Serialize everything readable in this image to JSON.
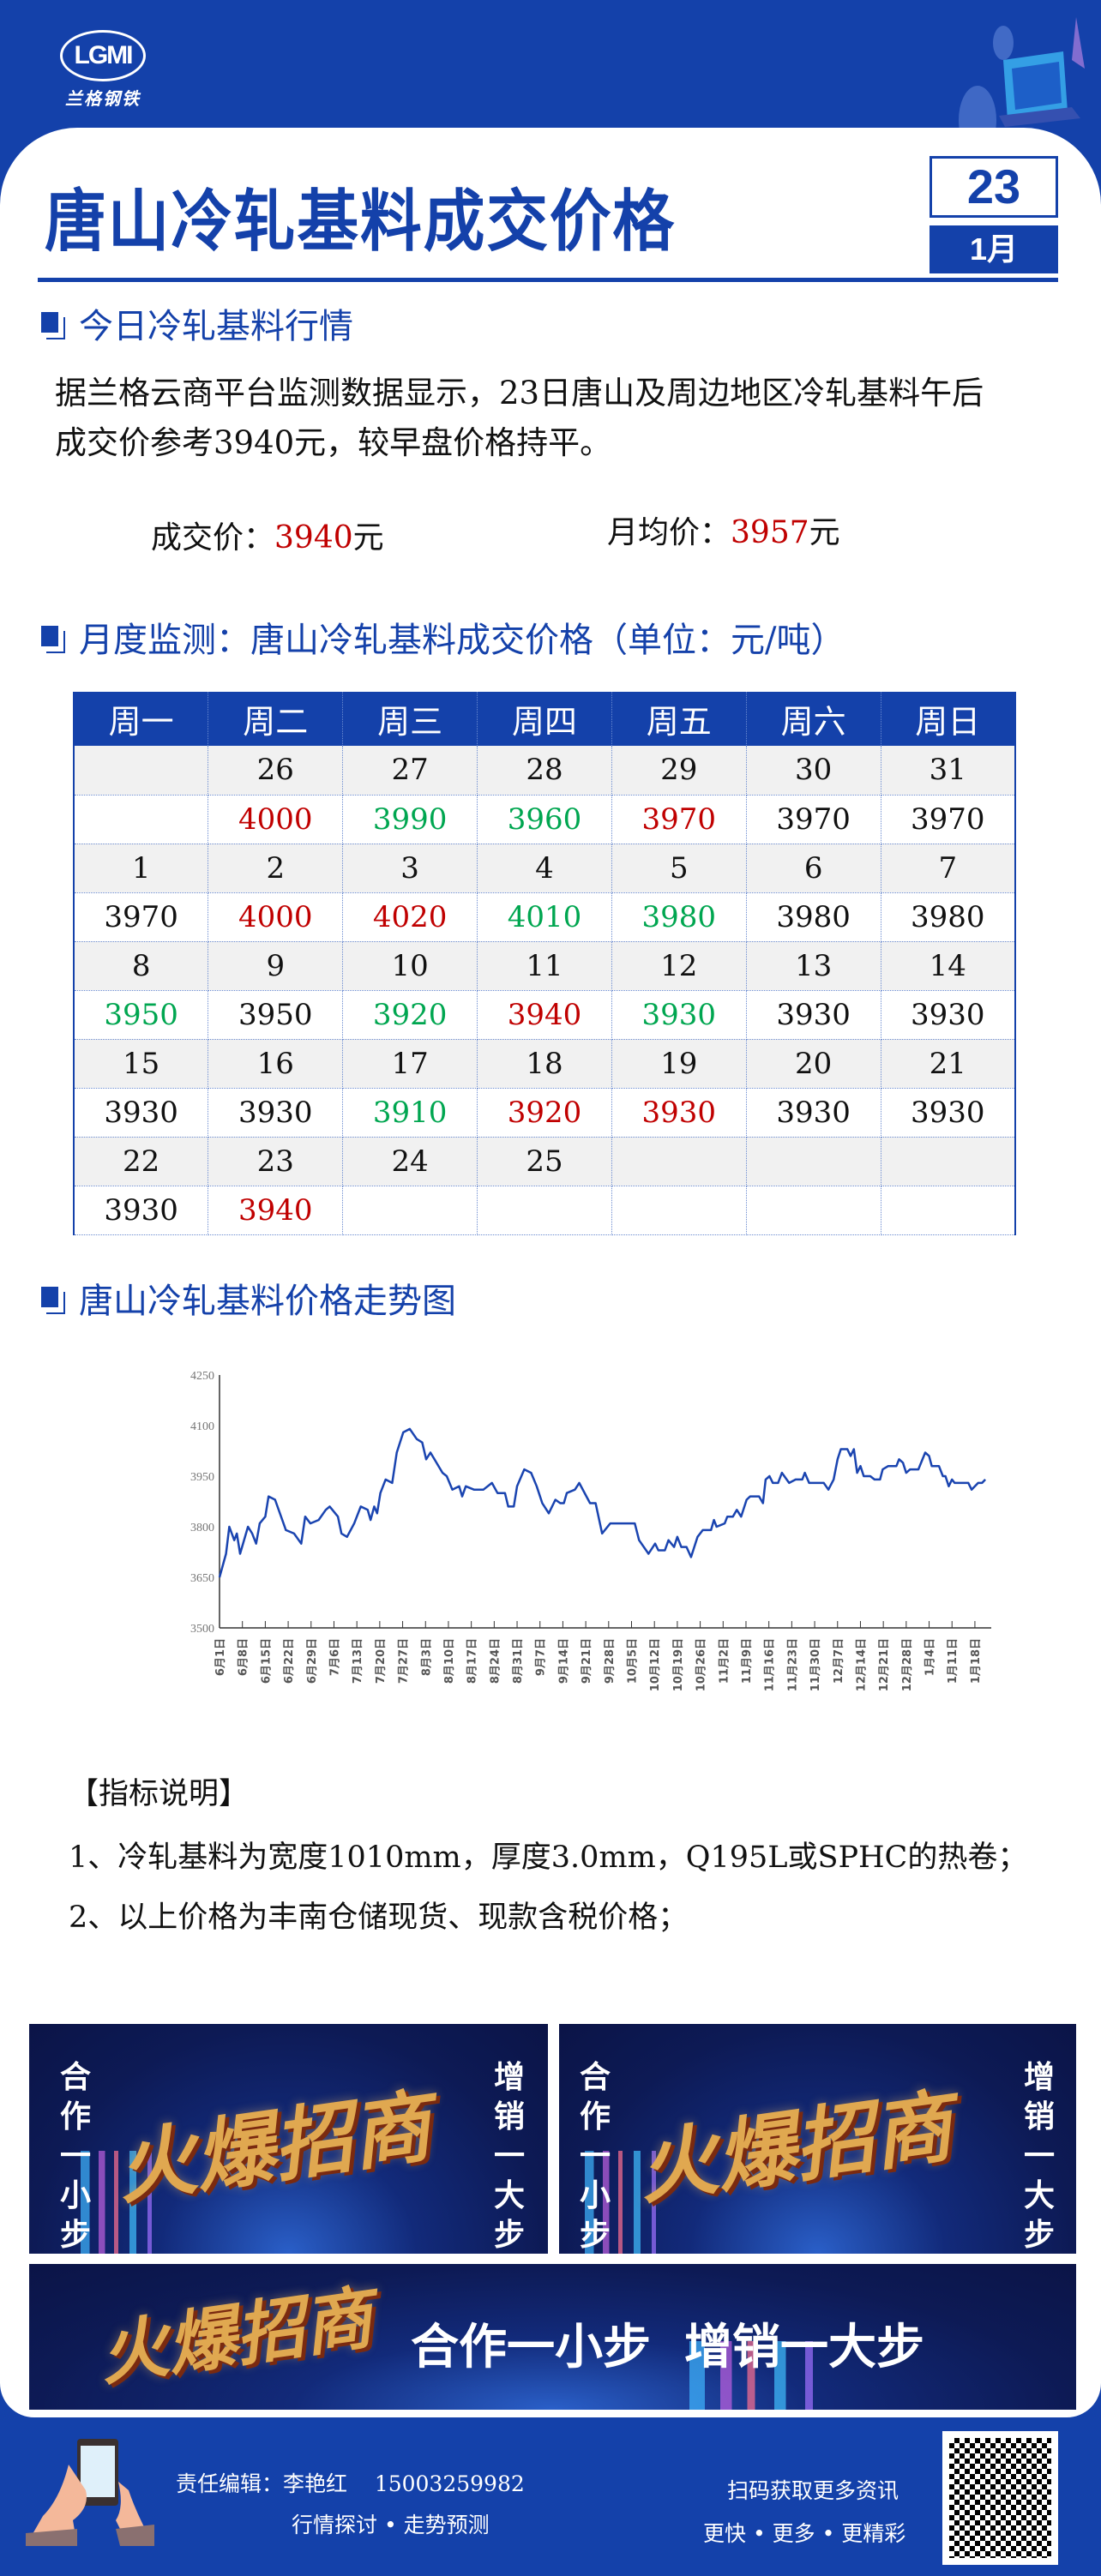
{
  "brand": {
    "logo_letters": "LGMI",
    "logo_name": "兰格钢铁"
  },
  "header": {
    "title": "唐山冷轧基料成交价格",
    "day": "23",
    "month": "1月"
  },
  "today": {
    "heading": "今日冷轧基料行情",
    "paragraph_line1": "据兰格云商平台监测数据显示，23日唐山及周边地区冷轧基料午后",
    "paragraph_line2": "成交价参考3940元，较早盘价格持平。",
    "deal_label": "成交价：",
    "deal_value": "3940",
    "deal_unit": "元",
    "avg_label": "月均价：",
    "avg_value": "3957",
    "avg_unit": "元"
  },
  "monthly": {
    "heading": "月度监测：唐山冷轧基料成交价格（单位：元/吨）",
    "weekdays": [
      "周一",
      "周二",
      "周三",
      "周四",
      "周五",
      "周六",
      "周日"
    ],
    "weeks": [
      {
        "dates": [
          "",
          "26",
          "27",
          "28",
          "29",
          "30",
          "31"
        ],
        "prices": [
          "",
          "4000",
          "3990",
          "3960",
          "3970",
          "3970",
          "3970"
        ],
        "colors": [
          "black",
          "red",
          "green",
          "green",
          "red",
          "black",
          "black"
        ]
      },
      {
        "dates": [
          "1",
          "2",
          "3",
          "4",
          "5",
          "6",
          "7"
        ],
        "prices": [
          "3970",
          "4000",
          "4020",
          "4010",
          "3980",
          "3980",
          "3980"
        ],
        "colors": [
          "black",
          "red",
          "red",
          "green",
          "green",
          "black",
          "black"
        ]
      },
      {
        "dates": [
          "8",
          "9",
          "10",
          "11",
          "12",
          "13",
          "14"
        ],
        "prices": [
          "3950",
          "3950",
          "3920",
          "3940",
          "3930",
          "3930",
          "3930"
        ],
        "colors": [
          "green",
          "black",
          "green",
          "red",
          "green",
          "black",
          "black"
        ]
      },
      {
        "dates": [
          "15",
          "16",
          "17",
          "18",
          "19",
          "20",
          "21"
        ],
        "prices": [
          "3930",
          "3930",
          "3910",
          "3920",
          "3930",
          "3930",
          "3930"
        ],
        "colors": [
          "black",
          "black",
          "green",
          "red",
          "red",
          "black",
          "black"
        ]
      },
      {
        "dates": [
          "22",
          "23",
          "24",
          "25",
          "",
          "",
          ""
        ],
        "prices": [
          "3930",
          "3940",
          "",
          "",
          "",
          "",
          ""
        ],
        "colors": [
          "black",
          "red",
          "black",
          "black",
          "black",
          "black",
          "black"
        ]
      }
    ]
  },
  "trend": {
    "heading": "唐山冷轧基料价格走势图"
  },
  "chart_data": {
    "type": "line",
    "title": "",
    "xlabel": "",
    "ylabel": "单位：元/吨",
    "ylim": [
      3500,
      4250
    ],
    "yticks": [
      3500,
      3650,
      3800,
      3950,
      4100,
      4250
    ],
    "x_unit": "days since 6月1日",
    "xticks": [
      "6月1日",
      "6月8日",
      "6月15日",
      "6月22日",
      "6月29日",
      "7月6日",
      "7月13日",
      "7月20日",
      "7月27日",
      "8月3日",
      "8月10日",
      "8月17日",
      "8月24日",
      "8月31日",
      "9月7日",
      "9月14日",
      "9月21日",
      "9月28日",
      "10月5日",
      "10月12日",
      "10月19日",
      "10月26日",
      "11月2日",
      "11月9日",
      "11月16日",
      "11月23日",
      "11月30日",
      "12月7日",
      "12月14日",
      "12月21日",
      "12月28日",
      "1月4日",
      "1月11日",
      "1月18日"
    ],
    "xlim": [
      0,
      236
    ],
    "grid": false,
    "color": "#1a44b0",
    "series": [
      {
        "name": "唐山冷轧基料",
        "points": [
          [
            0,
            3650
          ],
          [
            2,
            3720
          ],
          [
            3,
            3800
          ],
          [
            4.5,
            3760
          ],
          [
            5.3,
            3780
          ],
          [
            6.3,
            3720
          ],
          [
            8.7,
            3800
          ],
          [
            10,
            3780
          ],
          [
            11.2,
            3750
          ],
          [
            12.3,
            3810
          ],
          [
            14,
            3830
          ],
          [
            15,
            3890
          ],
          [
            17,
            3880
          ],
          [
            20.3,
            3790
          ],
          [
            22.8,
            3780
          ],
          [
            25,
            3750
          ],
          [
            26.2,
            3830
          ],
          [
            27.8,
            3810
          ],
          [
            30.3,
            3820
          ],
          [
            32.5,
            3850
          ],
          [
            33.7,
            3860
          ],
          [
            36.2,
            3830
          ],
          [
            37.3,
            3780
          ],
          [
            39,
            3770
          ],
          [
            41.2,
            3810
          ],
          [
            43.2,
            3860
          ],
          [
            45.3,
            3850
          ],
          [
            46.2,
            3820
          ],
          [
            47.3,
            3860
          ],
          [
            48.2,
            3840
          ],
          [
            49.2,
            3900
          ],
          [
            50.8,
            3940
          ],
          [
            52.8,
            3930
          ],
          [
            54.2,
            4020
          ],
          [
            56.2,
            4080
          ],
          [
            58.2,
            4090
          ],
          [
            60.3,
            4060
          ],
          [
            62,
            4050
          ],
          [
            63.2,
            4000
          ],
          [
            64.5,
            4020
          ],
          [
            68.2,
            3960
          ],
          [
            69.5,
            3950
          ],
          [
            71.2,
            3910
          ],
          [
            73.3,
            3920
          ],
          [
            74.2,
            3890
          ],
          [
            75.3,
            3920
          ],
          [
            77.8,
            3910
          ],
          [
            80.7,
            3910
          ],
          [
            83.3,
            3930
          ],
          [
            85,
            3900
          ],
          [
            87.3,
            3900
          ],
          [
            88.3,
            3860
          ],
          [
            90,
            3860
          ],
          [
            91,
            3920
          ],
          [
            93.2,
            3970
          ],
          [
            95.3,
            3960
          ],
          [
            97,
            3920
          ],
          [
            98.7,
            3870
          ],
          [
            100.7,
            3840
          ],
          [
            102.7,
            3880
          ],
          [
            104.2,
            3870
          ],
          [
            105.3,
            3870
          ],
          [
            106.2,
            3900
          ],
          [
            108.7,
            3910
          ],
          [
            110,
            3930
          ],
          [
            113.3,
            3870
          ],
          [
            115,
            3870
          ],
          [
            117,
            3780
          ],
          [
            119.5,
            3810
          ],
          [
            127,
            3810
          ],
          [
            128.3,
            3760
          ],
          [
            131.2,
            3720
          ],
          [
            133.2,
            3750
          ],
          [
            134.2,
            3730
          ],
          [
            136.2,
            3730
          ],
          [
            137.3,
            3760
          ],
          [
            139,
            3740
          ],
          [
            140,
            3770
          ],
          [
            141.2,
            3740
          ],
          [
            142.8,
            3740
          ],
          [
            144.2,
            3710
          ],
          [
            146.2,
            3770
          ],
          [
            147.8,
            3790
          ],
          [
            150.3,
            3790
          ],
          [
            151.2,
            3820
          ],
          [
            152,
            3800
          ],
          [
            154.5,
            3810
          ],
          [
            155.3,
            3830
          ],
          [
            157,
            3830
          ],
          [
            158.2,
            3850
          ],
          [
            159.5,
            3830
          ],
          [
            161.2,
            3880
          ],
          [
            162.3,
            3890
          ],
          [
            165,
            3890
          ],
          [
            166.2,
            3870
          ],
          [
            167,
            3940
          ],
          [
            168.2,
            3950
          ],
          [
            169.2,
            3930
          ],
          [
            170.8,
            3930
          ],
          [
            172,
            3960
          ],
          [
            174.2,
            3930
          ],
          [
            176.2,
            3940
          ],
          [
            178.2,
            3940
          ],
          [
            179,
            3960
          ],
          [
            180.3,
            3930
          ],
          [
            184.8,
            3930
          ],
          [
            186.2,
            3910
          ],
          [
            187.8,
            3940
          ],
          [
            189,
            4000
          ],
          [
            190,
            4030
          ],
          [
            192,
            4030
          ],
          [
            193,
            4010
          ],
          [
            194,
            4030
          ],
          [
            195,
            3960
          ],
          [
            196,
            3980
          ],
          [
            197,
            3950
          ],
          [
            199,
            3950
          ],
          [
            200.3,
            3940
          ],
          [
            202,
            3940
          ],
          [
            202.8,
            3970
          ],
          [
            204.5,
            3980
          ],
          [
            207,
            3980
          ],
          [
            207.8,
            4000
          ],
          [
            209,
            3990
          ],
          [
            210,
            3960
          ],
          [
            211.2,
            3970
          ],
          [
            213.7,
            3970
          ],
          [
            215.8,
            4020
          ],
          [
            217,
            4010
          ],
          [
            217.8,
            3980
          ],
          [
            220,
            3980
          ],
          [
            221.2,
            3950
          ],
          [
            222,
            3950
          ],
          [
            223,
            3920
          ],
          [
            224,
            3940
          ],
          [
            224.8,
            3930
          ],
          [
            229,
            3930
          ],
          [
            230,
            3910
          ],
          [
            232,
            3930
          ],
          [
            233.2,
            3930
          ],
          [
            234.2,
            3940
          ]
        ]
      }
    ]
  },
  "notes": {
    "heading": "【指标说明】",
    "items": [
      "1、冷轧基料为宽度1010mm，厚度3.0mm，Q195L或SPHC的热卷；",
      "2、以上价格为丰南仓储现货、现款含税价格；"
    ]
  },
  "ads": {
    "headline": "火爆招商",
    "left_slogan": "合作一小步",
    "right_slogan": "增销一大步",
    "wide_slogan": "合作一小步  增销一大步"
  },
  "footer": {
    "editor": "责任编辑：李艳红",
    "phone": "15003259982",
    "tagline": "行情探讨 • 走势预测",
    "qr_caption": "扫码获取更多资讯",
    "qr_tagline": "更快 • 更多 • 更精彩"
  }
}
